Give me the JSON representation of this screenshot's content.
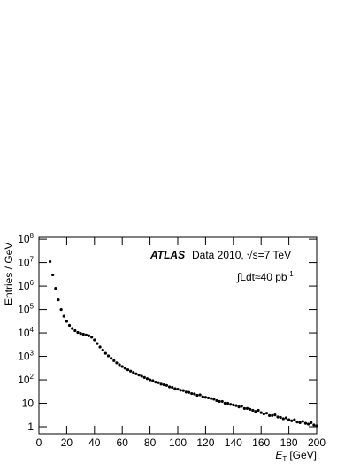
{
  "chart_data": {
    "type": "scatter",
    "annotations": {
      "experiment": "ATLAS",
      "dataset": "Data 2010, √s=7 TeV",
      "luminosity": "∫Ldt≈40 pb",
      "luminosity_exponent": "-1"
    },
    "ylabel": "Entries / GeV",
    "xlabel": {
      "symbol": "E",
      "subscript": "T",
      "unit": "[GeV]"
    },
    "color": "#000000",
    "log_y": true,
    "xlim": [
      0,
      200
    ],
    "xticks": [
      0,
      20,
      40,
      60,
      80,
      100,
      120,
      140,
      160,
      180,
      200
    ],
    "ylim": [
      0.5,
      120000000
    ],
    "yticks": [
      1,
      10,
      {
        "value": 100,
        "label": "10",
        "exponent": "2"
      },
      {
        "value": 1000,
        "label": "10",
        "exponent": "3"
      },
      {
        "value": 10000,
        "label": "10",
        "exponent": "4"
      },
      {
        "value": 100000,
        "label": "10",
        "exponent": "5"
      },
      {
        "value": 1000000,
        "label": "10",
        "exponent": "6"
      },
      {
        "value": 10000000,
        "label": "10",
        "exponent": "7"
      },
      {
        "value": 100000000,
        "label": "10",
        "exponent": "8"
      }
    ],
    "x": [
      8,
      10,
      12,
      14,
      16,
      18,
      20,
      22,
      24,
      26,
      28,
      30,
      32,
      34,
      36,
      38,
      40,
      42,
      44,
      46,
      48,
      50,
      52,
      54,
      56,
      58,
      60,
      62,
      64,
      66,
      68,
      70,
      72,
      74,
      76,
      78,
      80,
      82,
      84,
      86,
      88,
      90,
      92,
      94,
      96,
      98,
      100,
      102,
      104,
      106,
      108,
      110,
      112,
      114,
      116,
      118,
      120,
      122,
      124,
      126,
      128,
      130,
      132,
      134,
      136,
      138,
      140,
      142,
      144,
      146,
      148,
      150,
      152,
      154,
      156,
      158,
      160,
      162,
      164,
      166,
      168,
      170,
      172,
      174,
      176,
      178,
      180,
      182,
      184,
      186,
      188,
      190,
      192,
      194,
      196,
      198,
      200
    ],
    "values": [
      11000000,
      3000000,
      800000,
      260000,
      100000,
      52000,
      31000,
      21000,
      15500,
      12500,
      10500,
      9500,
      8800,
      8200,
      7600,
      6600,
      5000,
      3500,
      2500,
      1850,
      1350,
      1050,
      830,
      660,
      530,
      440,
      370,
      315,
      270,
      235,
      205,
      180,
      160,
      142,
      126,
      112,
      100,
      92,
      80,
      76,
      66,
      62,
      58,
      50,
      48,
      42,
      40,
      36,
      35,
      30,
      29,
      26,
      25,
      22,
      23,
      19,
      18,
      17,
      16,
      15,
      13,
      12,
      12,
      10,
      10,
      9,
      8.5,
      8,
      7,
      7.5,
      6,
      6,
      5.5,
      5,
      4.5,
      5,
      4,
      3.5,
      3.8,
      3,
      3,
      3.2,
      2.6,
      2.5,
      2.2,
      2.4,
      2,
      1.8,
      2,
      1.6,
      1.5,
      1.7,
      1.4,
      1.3,
      1.5,
      1.2,
      1.1
    ]
  }
}
